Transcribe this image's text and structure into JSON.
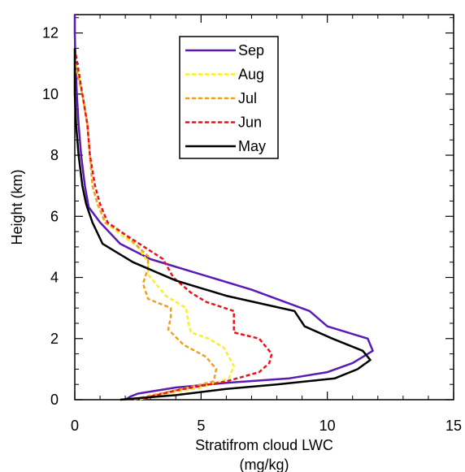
{
  "chart_data": {
    "type": "line",
    "title": "",
    "xlabel_line1": "Stratifrom cloud LWC",
    "xlabel_line2": "(mg/kg)",
    "ylabel": "Height (km)",
    "xlim": [
      0,
      15
    ],
    "ylim": [
      0,
      12.6
    ],
    "x_ticks": [
      0,
      5,
      10,
      15
    ],
    "y_ticks": [
      0,
      2,
      4,
      6,
      8,
      10,
      12
    ],
    "grid": false,
    "legend_position": "top-center",
    "series": [
      {
        "name": "Sep",
        "color": "#5a1ab5",
        "dash": "solid",
        "points": [
          [
            0,
            12.6
          ],
          [
            0,
            12
          ],
          [
            0.03,
            11
          ],
          [
            0.08,
            10
          ],
          [
            0.15,
            9
          ],
          [
            0.25,
            8
          ],
          [
            0.4,
            7
          ],
          [
            0.55,
            6.3
          ],
          [
            1,
            5.8
          ],
          [
            1.8,
            5.1
          ],
          [
            3,
            4.6
          ],
          [
            5,
            4.1
          ],
          [
            7,
            3.6
          ],
          [
            9.3,
            2.9
          ],
          [
            10,
            2.4
          ],
          [
            11.6,
            2.0
          ],
          [
            11.8,
            1.6
          ],
          [
            11,
            1.2
          ],
          [
            10,
            0.9
          ],
          [
            8.5,
            0.7
          ],
          [
            6,
            0.55
          ],
          [
            4,
            0.4
          ],
          [
            2.5,
            0.2
          ],
          [
            2.2,
            0.1
          ],
          [
            2,
            0
          ]
        ]
      },
      {
        "name": "Aug",
        "color": "#f7f02a",
        "dash": "dash",
        "points": [
          [
            0,
            11.2
          ],
          [
            0.3,
            10
          ],
          [
            0.5,
            9
          ],
          [
            0.6,
            8
          ],
          [
            0.7,
            7
          ],
          [
            0.9,
            6.4
          ],
          [
            1.2,
            5.8
          ],
          [
            2,
            5.3
          ],
          [
            2.5,
            5.0
          ],
          [
            2.9,
            4.5
          ],
          [
            2.9,
            4.1
          ],
          [
            3.6,
            3.4
          ],
          [
            4.4,
            3.0
          ],
          [
            4.5,
            2.5
          ],
          [
            4.6,
            2.2
          ],
          [
            5.3,
            2.0
          ],
          [
            5.9,
            1.7
          ],
          [
            6.3,
            1.1
          ],
          [
            6.1,
            0.7
          ],
          [
            5.0,
            0.4
          ],
          [
            3,
            0.1
          ],
          [
            2.5,
            0
          ]
        ]
      },
      {
        "name": "Jul",
        "color": "#f0a020",
        "dash": "dash",
        "points": [
          [
            0,
            11.0
          ],
          [
            0.3,
            10
          ],
          [
            0.5,
            9
          ],
          [
            0.6,
            8
          ],
          [
            0.7,
            7
          ],
          [
            0.9,
            6.4
          ],
          [
            1.2,
            5.8
          ],
          [
            2,
            5.4
          ],
          [
            2.9,
            4.7
          ],
          [
            2.9,
            4.3
          ],
          [
            2.7,
            3.8
          ],
          [
            2.9,
            3.3
          ],
          [
            3.8,
            3.0
          ],
          [
            3.8,
            2.7
          ],
          [
            3.7,
            2.3
          ],
          [
            4.3,
            1.8
          ],
          [
            5.2,
            1.4
          ],
          [
            5.6,
            1.0
          ],
          [
            5.5,
            0.6
          ],
          [
            4.5,
            0.4
          ],
          [
            2.8,
            0.1
          ],
          [
            2.3,
            0
          ]
        ]
      },
      {
        "name": "Jun",
        "color": "#e8141c",
        "dash": "dash",
        "points": [
          [
            0,
            11.5
          ],
          [
            0.3,
            10
          ],
          [
            0.5,
            9
          ],
          [
            0.6,
            8
          ],
          [
            0.8,
            7
          ],
          [
            1,
            6.4
          ],
          [
            1.3,
            5.8
          ],
          [
            2,
            5.4
          ],
          [
            3.5,
            4.6
          ],
          [
            3.9,
            4.0
          ],
          [
            4.6,
            3.5
          ],
          [
            5.2,
            3.2
          ],
          [
            6.3,
            2.9
          ],
          [
            6.3,
            2.5
          ],
          [
            6.3,
            2.2
          ],
          [
            7.3,
            2.0
          ],
          [
            7.8,
            1.5
          ],
          [
            7.7,
            1.2
          ],
          [
            7.3,
            0.9
          ],
          [
            6.0,
            0.6
          ],
          [
            4,
            0.3
          ],
          [
            3,
            0.1
          ],
          [
            2.7,
            0
          ]
        ]
      },
      {
        "name": "May",
        "color": "#000000",
        "dash": "solid",
        "points": [
          [
            0,
            11.5
          ],
          [
            0,
            10
          ],
          [
            0.05,
            9
          ],
          [
            0.15,
            8
          ],
          [
            0.3,
            7
          ],
          [
            0.45,
            6.4
          ],
          [
            0.7,
            5.8
          ],
          [
            1.1,
            5.1
          ],
          [
            2.3,
            4.5
          ],
          [
            4,
            3.9
          ],
          [
            6,
            3.4
          ],
          [
            8.7,
            2.9
          ],
          [
            9.1,
            2.4
          ],
          [
            10.2,
            2.0
          ],
          [
            11.4,
            1.6
          ],
          [
            11.7,
            1.3
          ],
          [
            11.2,
            1.0
          ],
          [
            10.3,
            0.7
          ],
          [
            8,
            0.5
          ],
          [
            6,
            0.35
          ],
          [
            4,
            0.15
          ],
          [
            2.5,
            0.05
          ],
          [
            1.8,
            0
          ]
        ]
      }
    ]
  }
}
